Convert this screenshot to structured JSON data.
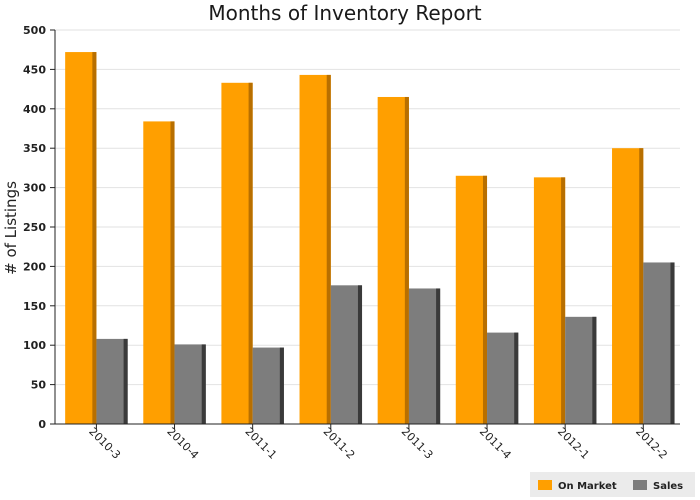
{
  "chart_data": {
    "type": "bar",
    "title": "Months of Inventory Report",
    "xlabel": "",
    "ylabel": "# of Listings",
    "categories": [
      "2010-3",
      "2010-4",
      "2011-1",
      "2011-2",
      "2011-3",
      "2011-4",
      "2012-1",
      "2012-2"
    ],
    "series": [
      {
        "name": "On Market",
        "color": "#ff9f00",
        "shade": "#b86f00",
        "values": [
          472,
          384,
          433,
          443,
          415,
          315,
          313,
          350
        ]
      },
      {
        "name": "Sales",
        "color": "#7d7d7d",
        "shade": "#3a3a3a",
        "values": [
          108,
          101,
          97,
          176,
          172,
          116,
          136,
          205
        ]
      }
    ],
    "ylim": [
      0,
      500
    ],
    "yticks": [
      0,
      50,
      100,
      150,
      200,
      250,
      300,
      350,
      400,
      450,
      500
    ],
    "grid": true,
    "legend": "bottom-right"
  }
}
